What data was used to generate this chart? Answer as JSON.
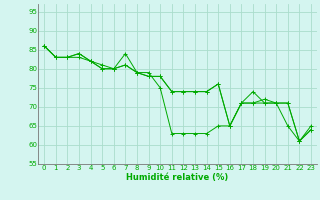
{
  "title": "",
  "xlabel": "Humidité relative (%)",
  "ylabel": "",
  "xlim": [
    -0.5,
    23.5
  ],
  "ylim": [
    55,
    97
  ],
  "yticks": [
    55,
    60,
    65,
    70,
    75,
    80,
    85,
    90,
    95
  ],
  "xticks": [
    0,
    1,
    2,
    3,
    4,
    5,
    6,
    7,
    8,
    9,
    10,
    11,
    12,
    13,
    14,
    15,
    16,
    17,
    18,
    19,
    20,
    21,
    22,
    23
  ],
  "background_color": "#d4f5f0",
  "grid_color": "#aaddcc",
  "line_color": "#00aa00",
  "lines": [
    [
      86,
      83,
      83,
      83,
      82,
      81,
      80,
      84,
      79,
      79,
      75,
      63,
      63,
      63,
      63,
      65,
      65,
      71,
      74,
      71,
      71,
      71,
      61,
      65
    ],
    [
      86,
      83,
      83,
      84,
      82,
      80,
      80,
      81,
      79,
      78,
      78,
      74,
      74,
      74,
      74,
      76,
      65,
      71,
      71,
      71,
      71,
      65,
      61,
      64
    ],
    [
      86,
      83,
      83,
      84,
      82,
      80,
      80,
      81,
      79,
      78,
      78,
      74,
      74,
      74,
      74,
      76,
      65,
      71,
      71,
      72,
      71,
      71,
      61,
      64
    ]
  ]
}
